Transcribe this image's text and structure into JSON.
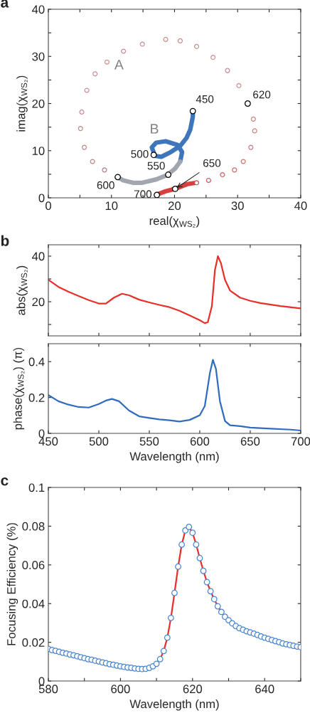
{
  "chart_data": [
    {
      "type": "scatter",
      "xlabel": "real(χ$_{WS₂}$)",
      "ylabel": "imag(χ$_{WS₂}$)",
      "xlim": [
        0,
        40
      ],
      "ylim": [
        0,
        40
      ],
      "xticks": [
        0,
        {
          "value": 5,
          "label": null
        },
        10,
        {
          "value": 15,
          "label": null
        },
        20,
        {
          "value": 25,
          "label": null
        },
        30,
        {
          "value": 35,
          "label": null
        },
        40
      ],
      "yticks": [
        0,
        {
          "value": 5,
          "label": null
        },
        10,
        {
          "value": 15,
          "label": null
        },
        20,
        {
          "value": 25,
          "label": null
        },
        30,
        {
          "value": 35,
          "label": null
        },
        40
      ],
      "series": [
        {
          "type": "line",
          "x": [
            22.9,
            22.9,
            22.5,
            21.9,
            20.9,
            19.4,
            17.9,
            16.9,
            16.4,
            17.1,
            18.6,
            20.5,
            21.2,
            20.9
          ],
          "values": [
            18.4,
            17.2,
            14.5,
            12.7,
            11.0,
            9.7,
            8.7,
            8.9,
            10.7,
            11.7,
            12.0,
            11.2,
            9.7,
            7.7
          ],
          "color": "#3f76bb"
        },
        {
          "type": "line",
          "x": [
            20.9,
            20.1,
            18.8,
            17.1,
            14.9,
            13.4,
            11.9,
            10.9
          ],
          "values": [
            7.7,
            6.2,
            4.8,
            3.9,
            3.2,
            3.2,
            3.7,
            4.4
          ],
          "color": "#a2a6ae"
        },
        {
          "type": "scatter",
          "marker": "circle",
          "x": [
            8.9,
            7.0,
            5.7,
            5.1,
            5.3,
            6.1,
            7.4,
            9.3,
            11.9,
            14.9,
            18.6,
            20.9,
            23.5,
            26.1,
            28.4,
            30.2,
            32.5,
            32.7,
            32.1,
            30.9,
            29.5,
            27.6,
            25.4,
            23.5
          ],
          "values": [
            5.9,
            7.7,
            10.7,
            14.7,
            18.2,
            22.8,
            26.3,
            28.8,
            31.1,
            32.6,
            33.6,
            33.3,
            32.1,
            29.8,
            27.0,
            23.8,
            16.7,
            14.2,
            10.7,
            7.7,
            5.9,
            4.9,
            3.7,
            3.2
          ],
          "colors": [
            "#b08383",
            "#b88787",
            "#bc8a8a",
            "#c08c8c",
            "#c48f8f",
            "#c69090",
            "#c89090",
            "#c89090",
            "#c89090",
            "#c89090",
            "#c89090",
            "#c89090",
            "#c89090",
            "#c89090",
            "#c89090",
            "#c89090",
            "#c88888",
            "#c88484",
            "#c87e7e",
            "#c87676",
            "#c86e6e",
            "#c86666",
            "#cc5c5c",
            "#cc5252"
          ]
        },
        {
          "type": "line",
          "x": [
            23.5,
            22.0,
            20.1,
            18.6,
            17.2
          ],
          "values": [
            3.2,
            2.9,
            1.9,
            1.4,
            0.7
          ],
          "color": "#d84040"
        },
        {
          "type": "scatter",
          "marker": "circle",
          "x": [
            22.9,
            16.7,
            19.0,
            11.0,
            31.6,
            20.1,
            17.2
          ],
          "values": [
            18.4,
            9.1,
            4.9,
            4.4,
            20.0,
            1.9,
            0.6
          ],
          "color": "#000000"
        }
      ],
      "annotations": [
        "a",
        "A",
        "B",
        {
          "text": "450",
          "x": 22.9,
          "y": 18.4
        },
        {
          "text": "500",
          "x": 16.7,
          "y": 9.1
        },
        {
          "text": "550",
          "x": 19.0,
          "y": 4.9
        },
        {
          "text": "600",
          "x": 11.0,
          "y": 4.4
        },
        {
          "text": "620",
          "x": 31.6,
          "y": 20.0
        },
        {
          "text": "650",
          "x": 20.1,
          "y": 1.9
        },
        {
          "text": "700",
          "x": 17.2,
          "y": 0.6
        }
      ]
    },
    {
      "type": "line",
      "ylabel": "abs(χ$_{WS₂}$)",
      "xlim": [
        450,
        700
      ],
      "ylim": [
        5,
        45
      ],
      "tick_labels": "y",
      "xticks": [
        450,
        500,
        550,
        600,
        650,
        700
      ],
      "yticks": [
        {
          "value": 10,
          "label": null
        },
        20,
        {
          "value": 30,
          "label": null
        },
        40
      ],
      "x": [
        450,
        460,
        470,
        480,
        490,
        500,
        507,
        515,
        523,
        530,
        540,
        550,
        560,
        570,
        580,
        590,
        600,
        605,
        608,
        612,
        615,
        618,
        621,
        625,
        630,
        640,
        650,
        660,
        680,
        700
      ],
      "series": [
        {
          "color": "#e8302a",
          "values": [
            29.6,
            26.5,
            24.4,
            22.5,
            20.7,
            19.2,
            19.2,
            21.8,
            23.5,
            22.8,
            20.9,
            19.7,
            18.6,
            17.6,
            16.0,
            14.0,
            11.9,
            10.6,
            11.0,
            18.1,
            33.8,
            40.0,
            36.9,
            29.6,
            24.9,
            21.8,
            20.4,
            19.4,
            18.1,
            17.1
          ]
        }
      ],
      "annotations": [
        "b"
      ]
    },
    {
      "type": "line",
      "xlabel": "Wavelength (nm)",
      "ylabel": "phase(χ$_{WS₂}$) (π)",
      "xlim": [
        450,
        700
      ],
      "ylim": [
        0,
        0.5
      ],
      "xticks": [
        450,
        500,
        550,
        600,
        650,
        700
      ],
      "yticks": [
        0,
        0.2,
        0.4
      ],
      "x": [
        450,
        460,
        470,
        480,
        490,
        500,
        507,
        513,
        520,
        530,
        540,
        550,
        560,
        570,
        580,
        590,
        600,
        605,
        610,
        613,
        616,
        620,
        625,
        630,
        640,
        650,
        670,
        690,
        700
      ],
      "series": [
        {
          "color": "#2f6cc0",
          "values": [
            0.214,
            0.179,
            0.16,
            0.147,
            0.144,
            0.164,
            0.183,
            0.192,
            0.179,
            0.127,
            0.095,
            0.086,
            0.078,
            0.073,
            0.066,
            0.075,
            0.101,
            0.153,
            0.335,
            0.41,
            0.361,
            0.179,
            0.069,
            0.045,
            0.04,
            0.032,
            0.026,
            0.021,
            0.016
          ]
        }
      ]
    },
    {
      "type": "line",
      "xlabel": "Wavelength (nm)",
      "ylabel": "Focusing Efficiency (%)",
      "xlim": [
        580,
        650
      ],
      "ylim": [
        0,
        0.1
      ],
      "xticks": [
        580,
        {
          "value": 590,
          "label": null
        },
        600,
        {
          "value": 610,
          "label": null
        },
        620,
        {
          "value": 630,
          "label": null
        },
        640,
        {
          "value": 650,
          "label": null
        }
      ],
      "yticks": [
        0,
        0.02,
        0.04,
        0.06,
        0.08,
        0.1
      ],
      "series": [
        {
          "type": "line",
          "color": "#e8302a",
          "x": [
            611,
            612,
            613,
            614,
            615,
            616,
            617,
            618,
            619,
            620,
            621,
            622,
            623,
            624,
            625,
            626,
            627,
            628
          ],
          "values": [
            0.0113,
            0.0155,
            0.0224,
            0.0326,
            0.0455,
            0.0591,
            0.0705,
            0.0778,
            0.0796,
            0.0766,
            0.0705,
            0.0635,
            0.0569,
            0.0511,
            0.0464,
            0.0423,
            0.0386,
            0.0357
          ]
        },
        {
          "type": "scatter",
          "marker": "circle",
          "color": "#4a86d0",
          "x": [
            580,
            581,
            582,
            583,
            584,
            585,
            586,
            587,
            588,
            589,
            590,
            591,
            592,
            593,
            594,
            595,
            596,
            597,
            598,
            599,
            600,
            601,
            602,
            603,
            604,
            605,
            606,
            607,
            608,
            609,
            610,
            611,
            612,
            613,
            614,
            615,
            616,
            617,
            618,
            619,
            620,
            621,
            622,
            623,
            624,
            625,
            626,
            627,
            628,
            629,
            630,
            631,
            632,
            633,
            634,
            635,
            636,
            637,
            638,
            639,
            640,
            641,
            642,
            643,
            644,
            645,
            646,
            647,
            648,
            649,
            650
          ],
          "values": [
            0.0166,
            0.016,
            0.0156,
            0.0151,
            0.0146,
            0.0142,
            0.0137,
            0.0133,
            0.0128,
            0.0123,
            0.0118,
            0.0113,
            0.011,
            0.0105,
            0.0101,
            0.0096,
            0.0092,
            0.0087,
            0.0084,
            0.008,
            0.0076,
            0.0073,
            0.007,
            0.0068,
            0.0065,
            0.0063,
            0.0062,
            0.0063,
            0.0068,
            0.0076,
            0.0089,
            0.0113,
            0.0155,
            0.0224,
            0.0326,
            0.0455,
            0.0591,
            0.0705,
            0.0778,
            0.0796,
            0.0766,
            0.0705,
            0.0635,
            0.0569,
            0.0511,
            0.0464,
            0.0423,
            0.0386,
            0.0357,
            0.0332,
            0.0314,
            0.0298,
            0.0284,
            0.0273,
            0.0265,
            0.0257,
            0.0251,
            0.0245,
            0.0238,
            0.023,
            0.0224,
            0.0218,
            0.0212,
            0.0206,
            0.0201,
            0.0194,
            0.019,
            0.0186,
            0.0182,
            0.0178,
            0.0175
          ]
        }
      ],
      "annotations": [
        "c"
      ]
    }
  ]
}
